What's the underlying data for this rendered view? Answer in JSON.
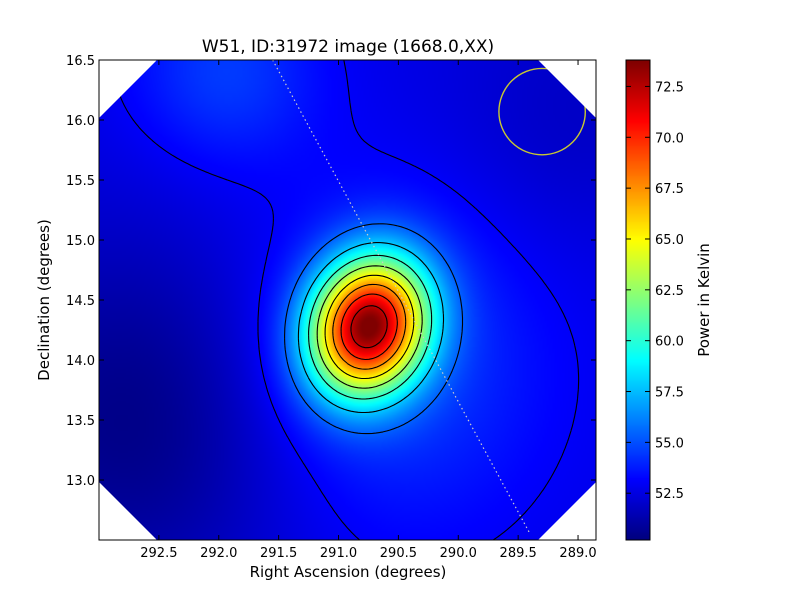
{
  "chart_data": {
    "type": "heatmap",
    "title": "W51, ID:31972 image (1668.0,XX)",
    "xlabel": "Right Ascension (degrees)",
    "ylabel": "Declination (degrees)",
    "colorbar_label": "Power in Kelvin",
    "xlim": [
      293.0,
      288.85
    ],
    "ylim": [
      12.5,
      16.5
    ],
    "x_ticks": [
      292.5,
      292.0,
      291.5,
      291.0,
      290.5,
      290.0,
      289.5,
      289.0
    ],
    "x_tick_labels": [
      "292.5",
      "292.0",
      "291.5",
      "291.0",
      "290.5",
      "290.0",
      "289.5",
      "289.0"
    ],
    "y_ticks": [
      13.0,
      13.5,
      14.0,
      14.5,
      15.0,
      15.5,
      16.0,
      16.5
    ],
    "y_tick_labels": [
      "13.0",
      "13.5",
      "14.0",
      "14.5",
      "15.0",
      "15.5",
      "16.0",
      "16.5"
    ],
    "colorbar_range": [
      50.2,
      73.8
    ],
    "colorbar_ticks": [
      52.5,
      55.0,
      57.5,
      60.0,
      62.5,
      65.0,
      67.5,
      70.0,
      72.5
    ],
    "colorbar_tick_labels": [
      "52.5",
      "55.0",
      "57.5",
      "60.0",
      "62.5",
      "65.0",
      "67.5",
      "70.0",
      "72.5"
    ],
    "colormap": "jet",
    "peak": {
      "ra": 290.75,
      "dec": 14.28,
      "value": 73.7
    },
    "contour_levels": [
      53.0,
      55.4,
      57.8,
      60.2,
      62.6,
      65.0,
      67.4,
      69.8,
      72.2
    ],
    "beam_circle": {
      "ra": 289.3,
      "dec": 16.07,
      "radius_deg": 0.36,
      "color": "#c8c832"
    },
    "scan_line": [
      [
        291.55,
        16.5
      ],
      [
        289.4,
        12.55
      ]
    ],
    "blank_corners": "white triangular wedges at all four corners of the map"
  }
}
